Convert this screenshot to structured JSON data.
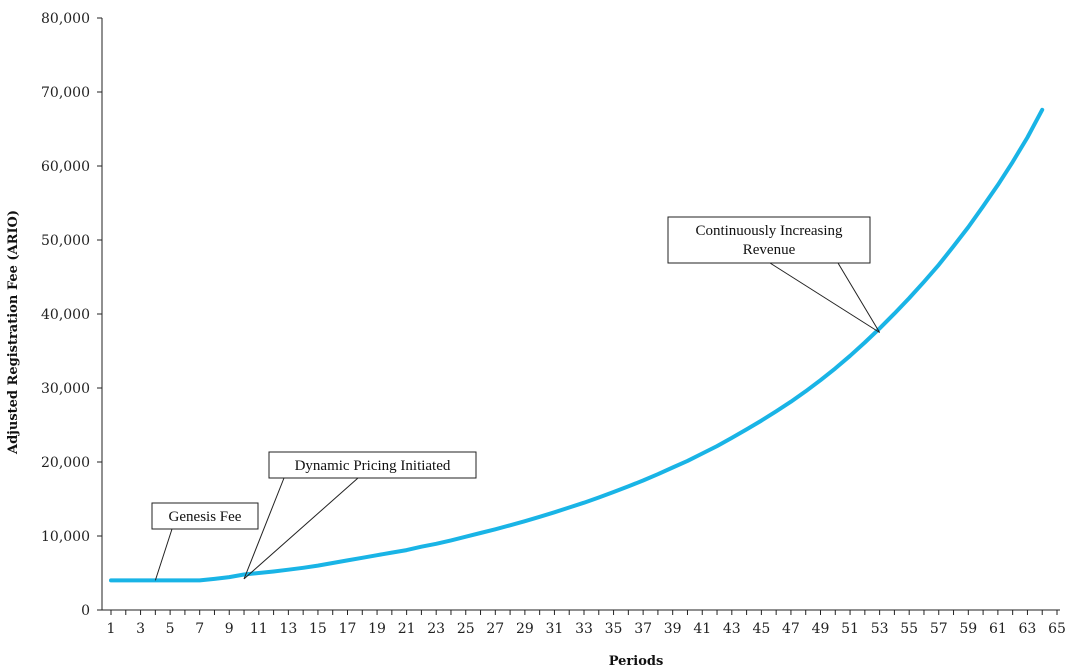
{
  "chart_data": {
    "type": "line",
    "xlabel": "Periods",
    "ylabel": "Adjusted Registration Fee (ARIO)",
    "ylim": [
      0,
      80000
    ],
    "yticks": [
      "0",
      "10,000",
      "20,000",
      "30,000",
      "40,000",
      "50,000",
      "60,000",
      "70,000",
      "80,000"
    ],
    "xlim": [
      1,
      65
    ],
    "x_tick_labels": [
      "1",
      "3",
      "5",
      "7",
      "9",
      "11",
      "13",
      "15",
      "17",
      "19",
      "21",
      "23",
      "25",
      "27",
      "29",
      "31",
      "33",
      "35",
      "37",
      "39",
      "41",
      "43",
      "45",
      "47",
      "49",
      "51",
      "53",
      "55",
      "57",
      "59",
      "61",
      "63",
      "65"
    ],
    "grid": false,
    "series_color": "#19b4e6",
    "series": [
      {
        "values": [
          4000,
          4000,
          4000,
          4000,
          4000,
          4000,
          4000,
          4200,
          4450,
          4800,
          5000,
          5200,
          5450,
          5700,
          6000,
          6350,
          6700,
          7050,
          7400,
          7750,
          8100,
          8550,
          8950,
          9400,
          9900,
          10400,
          10900,
          11450,
          12000,
          12600,
          13200,
          13850,
          14500,
          15200,
          15950,
          16700,
          17500,
          18350,
          19250,
          20150,
          21150,
          22150,
          23250,
          24400,
          25600,
          26850,
          28150,
          29550,
          31050,
          32650,
          34350,
          36150,
          38050,
          40050,
          42150,
          44350,
          46650,
          49150,
          51750,
          54550,
          57450,
          60550,
          63850,
          67600
        ]
      }
    ],
    "annotations": [
      {
        "text": [
          "Genesis Fee"
        ],
        "point_x": 4,
        "point_y": 4000
      },
      {
        "text": [
          "Dynamic Pricing Initiated"
        ],
        "point_x": 10,
        "point_y": 4200
      },
      {
        "text": [
          "Continuously Increasing",
          "Revenue"
        ],
        "point_x": 53,
        "point_y": 37500
      }
    ]
  }
}
